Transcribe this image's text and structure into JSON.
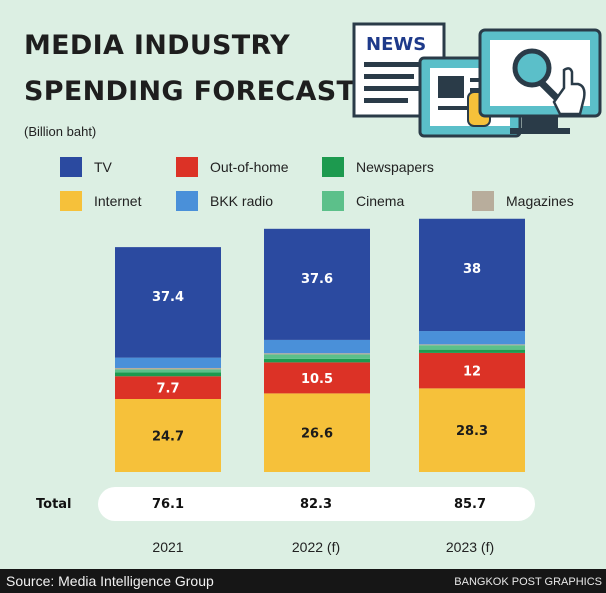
{
  "header": {
    "title_line1": "MEDIA INDUSTRY",
    "title_line2": "SPENDING FORECAST",
    "unit": "(Billion baht)",
    "illustration_text": "NEWS"
  },
  "legend": [
    {
      "name": "TV",
      "color": "#2b4aa0"
    },
    {
      "name": "Out-of-home",
      "color": "#dc3226"
    },
    {
      "name": "Newspapers",
      "color": "#1d9a4f"
    },
    {
      "name": "Internet",
      "color": "#f6c13a"
    },
    {
      "name": "BKK radio",
      "color": "#4a90d9"
    },
    {
      "name": "Cinema",
      "color": "#5cc08a"
    },
    {
      "name": "Magazines",
      "color": "#b8ad9c"
    }
  ],
  "chart_data": {
    "type": "bar",
    "stacked": true,
    "unit": "(Billion baht)",
    "categories": [
      "2021",
      "2022 (f)",
      "2023 (f)"
    ],
    "series": [
      {
        "name": "Internet",
        "values": [
          24.7,
          26.6,
          28.3
        ],
        "color": "#f6c13a"
      },
      {
        "name": "Out-of-home",
        "values": [
          7.7,
          10.5,
          12
        ],
        "color": "#dc3226"
      },
      {
        "name": "Newspapers",
        "values": [
          1.3,
          1.2,
          1.1
        ],
        "color": "#1d9a4f"
      },
      {
        "name": "Cinema",
        "values": [
          1.0,
          1.5,
          1.5
        ],
        "color": "#5cc08a"
      },
      {
        "name": "Magazines",
        "values": [
          0.5,
          0.4,
          0.3
        ],
        "color": "#b8ad9c"
      },
      {
        "name": "BKK radio",
        "values": [
          3.5,
          4.5,
          4.5
        ],
        "color": "#4a90d9"
      },
      {
        "name": "TV",
        "values": [
          37.4,
          37.6,
          38
        ],
        "color": "#2b4aa0"
      }
    ],
    "labeled_series": [
      "Internet",
      "Out-of-home",
      "TV"
    ],
    "totals_label": "Total",
    "totals": [
      76.1,
      82.3,
      85.7
    ]
  },
  "footer": {
    "source": "Source: Media Intelligence Group",
    "credit": "BANGKOK POST GRAPHICS"
  }
}
